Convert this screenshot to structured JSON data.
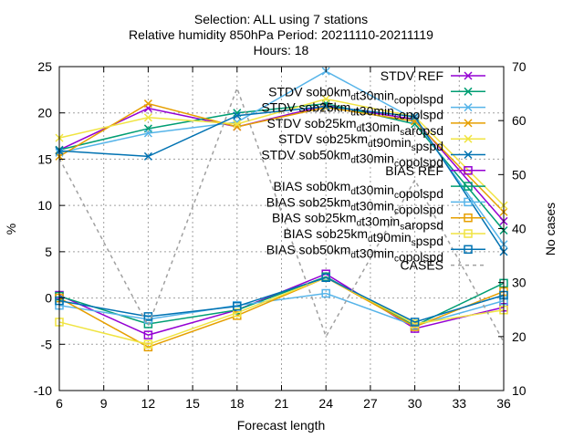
{
  "chart_data": {
    "type": "line",
    "title_lines": [
      "Selection: ALL using     7 stations",
      "Relative humidity 850hPa   Period: 20211110-20211119",
      "Hours: 18"
    ],
    "xlabel": "Forecast length",
    "ylabel": "%",
    "y2label": "No cases",
    "xlim": [
      6,
      36
    ],
    "ylim": [
      -10,
      25
    ],
    "y2lim": [
      10,
      70
    ],
    "x_ticks": [
      6,
      9,
      12,
      15,
      18,
      21,
      24,
      27,
      30,
      33,
      36
    ],
    "y_ticks": [
      -10,
      -5,
      0,
      5,
      10,
      15,
      20,
      25
    ],
    "y2_ticks": [
      10,
      20,
      30,
      40,
      50,
      60,
      70
    ],
    "grid": true,
    "legend_position": "top-right",
    "x": [
      6,
      12,
      18,
      24,
      30,
      36
    ],
    "series": [
      {
        "label_parts": [
          [
            "STDV REF",
            ""
          ]
        ],
        "color": "#9400d3",
        "marker": "x",
        "axis": "y",
        "values": [
          16.0,
          20.5,
          18.5,
          20.8,
          19.3,
          8.3
        ]
      },
      {
        "label_parts": [
          [
            "STDV sob0km",
            ""
          ],
          [
            "d",
            "sub"
          ],
          [
            "t30min",
            ""
          ],
          [
            "c",
            "sub"
          ],
          [
            "opolspd",
            ""
          ]
        ],
        "color": "#009e73",
        "marker": "x",
        "axis": "y",
        "values": [
          16.0,
          18.3,
          20.0,
          21.0,
          18.8,
          7.3
        ]
      },
      {
        "label_parts": [
          [
            "STDV sob25km",
            ""
          ],
          [
            "d",
            "sub"
          ],
          [
            "t30min",
            ""
          ],
          [
            "c",
            "sub"
          ],
          [
            "opolspd",
            ""
          ]
        ],
        "color": "#56b4e9",
        "marker": "x",
        "axis": "y",
        "values": [
          15.7,
          17.8,
          19.0,
          24.5,
          19.3,
          5.8
        ]
      },
      {
        "label_parts": [
          [
            "STDV sob25km",
            ""
          ],
          [
            "d",
            "sub"
          ],
          [
            "t30min",
            ""
          ],
          [
            "s",
            "sub"
          ],
          [
            "aropsd",
            ""
          ]
        ],
        "color": "#e69f00",
        "marker": "x",
        "axis": "y",
        "values": [
          15.3,
          21.0,
          18.5,
          20.6,
          19.1,
          9.3
        ]
      },
      {
        "label_parts": [
          [
            "STDV sob25km",
            ""
          ],
          [
            "d",
            "sub"
          ],
          [
            "t90min",
            ""
          ],
          [
            "s",
            "sub"
          ],
          [
            "pspd",
            ""
          ]
        ],
        "color": "#f0e442",
        "marker": "x",
        "axis": "y",
        "values": [
          17.3,
          19.5,
          18.8,
          21.5,
          19.6,
          10.0
        ]
      },
      {
        "label_parts": [
          [
            "STDV sob50km",
            ""
          ],
          [
            "d",
            "sub"
          ],
          [
            "t30min",
            ""
          ],
          [
            "c",
            "sub"
          ],
          [
            "opolspd",
            ""
          ]
        ],
        "color": "#0072b2",
        "marker": "x",
        "axis": "y",
        "values": [
          15.9,
          15.3,
          19.7,
          20.7,
          19.6,
          5.0
        ]
      },
      {
        "label_parts": [
          [
            "BIAS REF",
            ""
          ]
        ],
        "color": "#9400d3",
        "marker": "square",
        "axis": "y",
        "values": [
          0.3,
          -4.0,
          -1.3,
          2.6,
          -3.3,
          -1.0
        ]
      },
      {
        "label_parts": [
          [
            "BIAS sob0km",
            ""
          ],
          [
            "d",
            "sub"
          ],
          [
            "t30min",
            ""
          ],
          [
            "c",
            "sub"
          ],
          [
            "opolspd",
            ""
          ]
        ],
        "color": "#009e73",
        "marker": "square",
        "axis": "y",
        "values": [
          0.2,
          -2.8,
          -1.3,
          2.3,
          -3.0,
          1.6
        ]
      },
      {
        "label_parts": [
          [
            "BIAS sob25km",
            ""
          ],
          [
            "d",
            "sub"
          ],
          [
            "t30min",
            ""
          ],
          [
            "c",
            "sub"
          ],
          [
            "opolspd",
            ""
          ]
        ],
        "color": "#56b4e9",
        "marker": "square",
        "axis": "y",
        "values": [
          -0.8,
          -2.3,
          -0.8,
          0.5,
          -3.0,
          -0.3
        ]
      },
      {
        "label_parts": [
          [
            "BIAS sob25km",
            ""
          ],
          [
            "d",
            "sub"
          ],
          [
            "t30min",
            ""
          ],
          [
            "s",
            "sub"
          ],
          [
            "aropsd",
            ""
          ]
        ],
        "color": "#e69f00",
        "marker": "square",
        "axis": "y",
        "values": [
          0.0,
          -5.3,
          -1.9,
          2.2,
          -3.1,
          0.7
        ]
      },
      {
        "label_parts": [
          [
            "BIAS sob25km",
            ""
          ],
          [
            "d",
            "sub"
          ],
          [
            "t90min",
            ""
          ],
          [
            "s",
            "sub"
          ],
          [
            "pspd",
            ""
          ]
        ],
        "color": "#f0e442",
        "marker": "square",
        "axis": "y",
        "values": [
          -2.6,
          -5.0,
          -1.6,
          2.2,
          -2.8,
          -1.3
        ]
      },
      {
        "label_parts": [
          [
            "BIAS sob50km",
            ""
          ],
          [
            "d",
            "sub"
          ],
          [
            "t30min",
            ""
          ],
          [
            "c",
            "sub"
          ],
          [
            "opolspd",
            ""
          ]
        ],
        "color": "#0072b2",
        "marker": "square",
        "axis": "y",
        "values": [
          -0.3,
          -2.0,
          -0.9,
          2.2,
          -2.6,
          0.3
        ]
      },
      {
        "label_parts": [
          [
            "CASES",
            ""
          ]
        ],
        "color": "#a0a0a0",
        "marker": "none",
        "dashed": true,
        "axis": "y2",
        "values": [
          53,
          22,
          66,
          20,
          49,
          19
        ]
      }
    ]
  }
}
